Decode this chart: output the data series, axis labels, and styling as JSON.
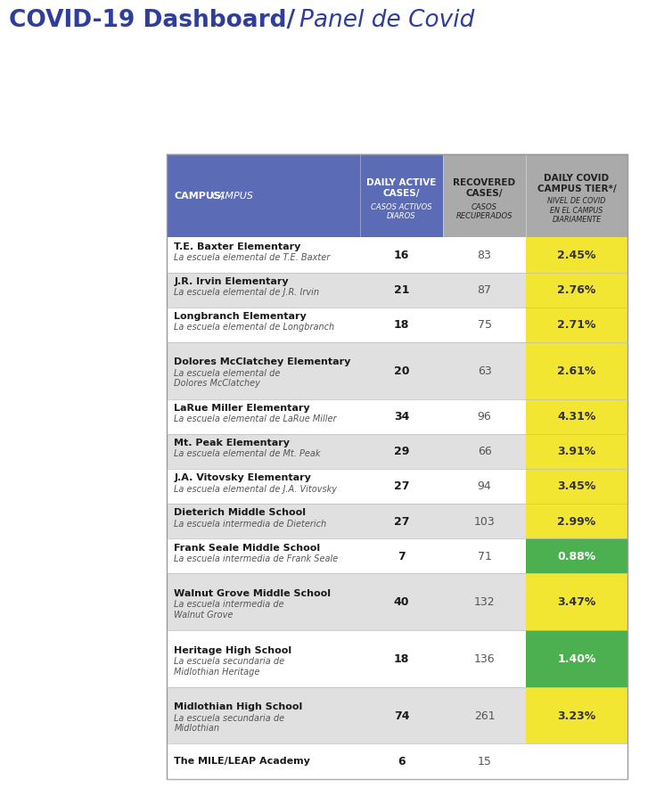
{
  "title_bold": "COVID-19 Dashboard/",
  "title_italic": "Panel de Covid",
  "header_bg_blue": "#5B6BB5",
  "header_bg_gray": "#AAAAAA",
  "yellow_cell": "#F2E633",
  "green_cell": "#4CAF50",
  "rows": [
    {
      "campus_bold": "T.E. Baxter Elementary",
      "campus_italic": "La escuela elemental de T.E. Baxter",
      "active": "16",
      "recovered": "83",
      "tier": "2.45%",
      "tier_bg": "yellow",
      "tier_color": "#333333"
    },
    {
      "campus_bold": "J.R. Irvin Elementary",
      "campus_italic": "La escuela elemental de J.R. Irvin",
      "active": "21",
      "recovered": "87",
      "tier": "2.76%",
      "tier_bg": "yellow",
      "tier_color": "#333333"
    },
    {
      "campus_bold": "Longbranch Elementary",
      "campus_italic": "La escuela elemental de Longbranch",
      "active": "18",
      "recovered": "75",
      "tier": "2.71%",
      "tier_bg": "yellow",
      "tier_color": "#333333"
    },
    {
      "campus_bold": "Dolores McClatchey Elementary",
      "campus_italic": "La escuela elemental de\nDolores McClatchey",
      "active": "20",
      "recovered": "63",
      "tier": "2.61%",
      "tier_bg": "yellow",
      "tier_color": "#333333"
    },
    {
      "campus_bold": "LaRue Miller Elementary",
      "campus_italic": "La escuela elemental de LaRue Miller",
      "active": "34",
      "recovered": "96",
      "tier": "4.31%",
      "tier_bg": "yellow",
      "tier_color": "#333333"
    },
    {
      "campus_bold": "Mt. Peak Elementary",
      "campus_italic": "La escuela elemental de Mt. Peak",
      "active": "29",
      "recovered": "66",
      "tier": "3.91%",
      "tier_bg": "yellow",
      "tier_color": "#333333"
    },
    {
      "campus_bold": "J.A. Vitovsky Elementary",
      "campus_italic": "La escuela elemental de J.A. Vitovsky",
      "active": "27",
      "recovered": "94",
      "tier": "3.45%",
      "tier_bg": "yellow",
      "tier_color": "#333333"
    },
    {
      "campus_bold": "Dieterich Middle School",
      "campus_italic": "La escuela intermedia de Dieterich",
      "active": "27",
      "recovered": "103",
      "tier": "2.99%",
      "tier_bg": "yellow",
      "tier_color": "#333333"
    },
    {
      "campus_bold": "Frank Seale Middle School",
      "campus_italic": "La escuela intermedia de Frank Seale",
      "active": "7",
      "recovered": "71",
      "tier": "0.88%",
      "tier_bg": "green",
      "tier_color": "#FFFFFF"
    },
    {
      "campus_bold": "Walnut Grove Middle School",
      "campus_italic": "La escuela intermedia de\nWalnut Grove",
      "active": "40",
      "recovered": "132",
      "tier": "3.47%",
      "tier_bg": "yellow",
      "tier_color": "#333333"
    },
    {
      "campus_bold": "Heritage High School",
      "campus_italic": "La escuela secundaria de\nMidlothian Heritage",
      "active": "18",
      "recovered": "136",
      "tier": "1.40%",
      "tier_bg": "green",
      "tier_color": "#FFFFFF"
    },
    {
      "campus_bold": "Midlothian High School",
      "campus_italic": "La escuela secundaria de\nMidlothian",
      "active": "74",
      "recovered": "261",
      "tier": "3.23%",
      "tier_bg": "yellow",
      "tier_color": "#333333"
    },
    {
      "campus_bold": "The MILE/LEAP Academy",
      "campus_italic": "",
      "active": "6",
      "recovered": "15",
      "tier": "",
      "tier_bg": "none",
      "tier_color": "#333333"
    }
  ]
}
